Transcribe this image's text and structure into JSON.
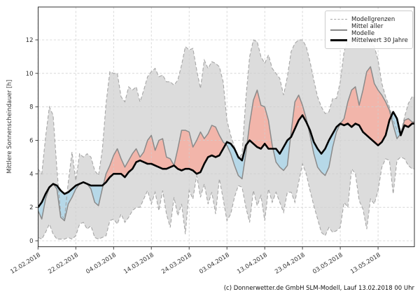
{
  "page": {
    "footer": "(c) Donnerwetter.de GmbH SLM-Modell, Lauf 13.02.2018 00 Uhr",
    "background": "#ffffff"
  },
  "legend": {
    "items": [
      {
        "label": "Modellgrenzen",
        "style": "dashed-gray"
      },
      {
        "label": "Mittel aller Modelle",
        "style": "solid-gray"
      },
      {
        "label": "Mittelwert 30 Jahre",
        "style": "solid-black"
      }
    ]
  },
  "colors": {
    "envelope_fill": "#dcdcdc",
    "envelope_edge": "#a6a6a6",
    "above_fill": "#f2b5aa",
    "below_fill": "#b6d8e8",
    "model_line": "#8a8a8a",
    "climate_line": "#000000",
    "grid": "#cfcfcf",
    "spine": "#333333",
    "tick_text": "#333333"
  },
  "chart_data": {
    "type": "area",
    "title": "",
    "xlabel": "",
    "ylabel": "Mittlere Sonnenscheindauer [h]",
    "ylim": [
      0,
      14
    ],
    "yticks": [
      0,
      2,
      4,
      6,
      8,
      10,
      12
    ],
    "grid": true,
    "legend_position": "upper right",
    "x_unit": "days since 12.02.2018",
    "n_days": 100,
    "x_tick_days": [
      0,
      10,
      20,
      30,
      40,
      50,
      60,
      70,
      80,
      90
    ],
    "x_tick_labels": [
      "12.02.2018",
      "22.02.2018",
      "04.03.2018",
      "14.03.2018",
      "24.03.2018",
      "03.04.2018",
      "13.04.2018",
      "23.04.2018",
      "03.05.2018",
      "13.05.2018"
    ],
    "series": [
      {
        "name": "Modellgrenzen (obere Grenze)",
        "role": "band_upper",
        "values": [
          4.3,
          4.0,
          6.2,
          8.0,
          7.5,
          4.3,
          1.6,
          1.3,
          3.5,
          5.3,
          3.6,
          5.2,
          5.0,
          5.2,
          5.0,
          4.2,
          3.9,
          5.4,
          8.2,
          10.1,
          10.0,
          10.0,
          8.6,
          8.3,
          9.2,
          9.0,
          9.2,
          8.3,
          9.0,
          9.8,
          10.1,
          10.3,
          9.8,
          9.9,
          9.5,
          9.5,
          9.3,
          9.6,
          10.5,
          11.6,
          11.4,
          11.5,
          10.2,
          9.1,
          10.8,
          10.3,
          10.7,
          10.6,
          10.4,
          9.5,
          7.2,
          6.3,
          5.6,
          4.9,
          5.2,
          8.5,
          11.0,
          12.0,
          11.9,
          11.0,
          10.6,
          11.1,
          10.3,
          10.0,
          9.7,
          8.7,
          9.8,
          11.3,
          11.8,
          12.0,
          12.0,
          11.6,
          10.7,
          9.6,
          8.6,
          8.0,
          7.6,
          7.7,
          8.5,
          8.5,
          9.5,
          11.3,
          12.0,
          12.0,
          11.7,
          11.8,
          11.9,
          12.1,
          12.0,
          11.6,
          10.8,
          9.4,
          8.6,
          8.0,
          7.2,
          6.6,
          6.4,
          7.4,
          8.2,
          8.6
        ]
      },
      {
        "name": "Modellgrenzen (untere Grenze)",
        "role": "band_lower",
        "values": [
          0.2,
          0.1,
          0.5,
          1.0,
          0.4,
          0.1,
          0.1,
          0.1,
          0.2,
          0.1,
          0.3,
          1.0,
          1.1,
          0.7,
          0.9,
          0.2,
          0.1,
          0.2,
          0.3,
          1.2,
          1.3,
          1.0,
          1.6,
          1.1,
          1.4,
          1.8,
          2.0,
          2.0,
          2.5,
          3.0,
          2.2,
          2.9,
          1.8,
          3.0,
          1.6,
          0.8,
          2.6,
          1.5,
          2.2,
          0.4,
          3.0,
          2.5,
          3.9,
          2.6,
          3.4,
          2.2,
          2.9,
          1.6,
          3.7,
          2.5,
          1.2,
          1.6,
          2.6,
          3.3,
          3.2,
          2.0,
          1.1,
          3.0,
          2.1,
          2.7,
          1.2,
          3.1,
          2.3,
          2.9,
          2.3,
          1.7,
          2.9,
          2.9,
          2.3,
          3.5,
          4.6,
          4.0,
          3.0,
          2.1,
          1.3,
          0.5,
          0.3,
          0.8,
          0.5,
          0.6,
          0.8,
          2.3,
          2.0,
          4.3,
          4.0,
          2.4,
          1.9,
          0.7,
          2.5,
          2.2,
          3.0,
          4.4,
          4.9,
          4.8,
          2.8,
          4.8,
          5.0,
          4.9,
          4.5,
          4.3
        ]
      },
      {
        "name": "Mittel aller Modelle",
        "role": "model_mean",
        "values": [
          1.8,
          1.3,
          2.5,
          3.2,
          3.4,
          3.1,
          1.4,
          1.2,
          2.2,
          2.6,
          3.1,
          3.4,
          3.5,
          3.4,
          3.1,
          2.3,
          2.1,
          3.1,
          4.0,
          4.5,
          5.1,
          5.5,
          4.9,
          4.4,
          4.8,
          5.2,
          5.5,
          5.0,
          5.3,
          6.0,
          6.3,
          5.4,
          6.0,
          6.1,
          5.0,
          4.9,
          4.5,
          5.5,
          6.6,
          6.6,
          6.5,
          5.6,
          6.0,
          6.5,
          6.1,
          6.4,
          6.9,
          6.8,
          6.3,
          5.9,
          5.7,
          5.2,
          4.5,
          3.9,
          3.7,
          5.2,
          7.0,
          8.4,
          9.0,
          8.1,
          8.0,
          7.2,
          5.7,
          4.7,
          4.4,
          4.2,
          4.5,
          6.5,
          8.3,
          8.7,
          8.1,
          7.3,
          6.3,
          5.2,
          4.4,
          4.1,
          3.9,
          4.4,
          5.6,
          6.5,
          7.0,
          7.3,
          8.3,
          9.0,
          9.2,
          8.1,
          9.0,
          10.1,
          10.4,
          9.4,
          9.0,
          8.7,
          8.3,
          7.8,
          6.9,
          6.1,
          6.4,
          7.2,
          7.3,
          7.1
        ]
      },
      {
        "name": "Mittelwert 30 Jahre",
        "role": "climate_mean",
        "values": [
          2.0,
          2.3,
          2.8,
          3.2,
          3.4,
          3.3,
          3.0,
          2.8,
          2.9,
          3.1,
          3.3,
          3.4,
          3.5,
          3.4,
          3.3,
          3.3,
          3.3,
          3.3,
          3.5,
          3.8,
          4.0,
          4.0,
          4.0,
          3.8,
          4.1,
          4.3,
          4.7,
          4.8,
          4.7,
          4.6,
          4.6,
          4.5,
          4.4,
          4.3,
          4.3,
          4.4,
          4.5,
          4.3,
          4.2,
          4.3,
          4.3,
          4.2,
          4.0,
          4.1,
          4.6,
          5.0,
          5.1,
          5.0,
          5.1,
          5.5,
          5.9,
          5.8,
          5.5,
          5.0,
          4.8,
          5.7,
          6.0,
          5.8,
          5.6,
          5.5,
          5.8,
          5.5,
          5.5,
          5.5,
          5.2,
          5.6,
          6.0,
          6.2,
          6.7,
          7.2,
          7.5,
          7.1,
          6.6,
          5.9,
          5.5,
          5.2,
          5.5,
          6.0,
          6.4,
          6.8,
          7.0,
          6.9,
          7.0,
          6.8,
          7.0,
          6.9,
          6.5,
          6.3,
          6.1,
          5.9,
          5.7,
          5.9,
          6.3,
          7.2,
          7.7,
          7.3,
          6.3,
          6.9,
          6.8,
          7.0
        ]
      }
    ]
  }
}
